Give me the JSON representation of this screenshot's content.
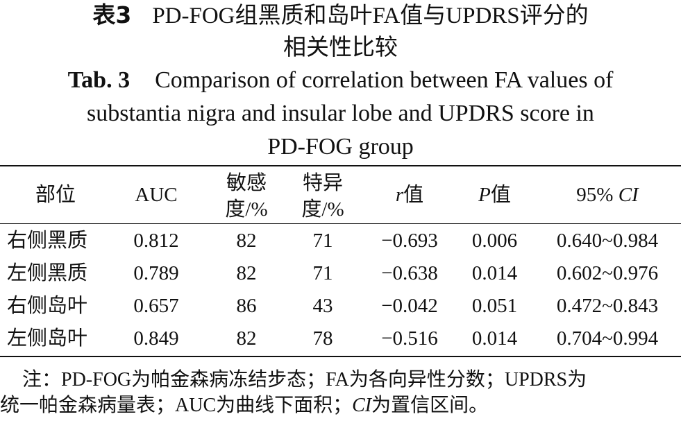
{
  "title": {
    "cn_label": "表3",
    "cn_line1": "PD-FOG组黑质和岛叶FA值与UPDRS评分的",
    "cn_line2": "相关性比较",
    "en_label": "Tab. 3",
    "en_line1": "Comparison of correlation between FA values of",
    "en_line2": "substantia nigra and insular lobe and UPDRS score in",
    "en_line3": "PD-FOG group"
  },
  "table": {
    "headers": {
      "site": "部位",
      "auc": "AUC",
      "sensitivity_1": "敏感",
      "sensitivity_2": "度/%",
      "specificity_1": "特异",
      "specificity_2": "度/%",
      "r_italic": "r",
      "r_suffix": "值",
      "p_italic": "P",
      "p_suffix": "值",
      "ci_prefix": "95% ",
      "ci_italic": "CI"
    },
    "rows": [
      {
        "site": "右侧黑质",
        "auc": "0.812",
        "sensitivity": "82",
        "specificity": "71",
        "r": "−0.693",
        "p": "0.006",
        "ci": "0.640~0.984"
      },
      {
        "site": "左侧黑质",
        "auc": "0.789",
        "sensitivity": "82",
        "specificity": "71",
        "r": "−0.638",
        "p": "0.014",
        "ci": "0.602~0.976"
      },
      {
        "site": "右侧岛叶",
        "auc": "0.657",
        "sensitivity": "86",
        "specificity": "43",
        "r": "−0.042",
        "p": "0.051",
        "ci": "0.472~0.843"
      },
      {
        "site": "左侧岛叶",
        "auc": "0.849",
        "sensitivity": "82",
        "specificity": "78",
        "r": "−0.516",
        "p": "0.014",
        "ci": "0.704~0.994"
      }
    ]
  },
  "note": {
    "line1": "注：PD-FOG为帕金森病冻结步态；FA为各向异性分数；UPDRS为",
    "line2_a": "统一帕金森病量表；AUC为曲线下面积；",
    "line2_ci": "CI",
    "line2_b": "为置信区间。"
  }
}
